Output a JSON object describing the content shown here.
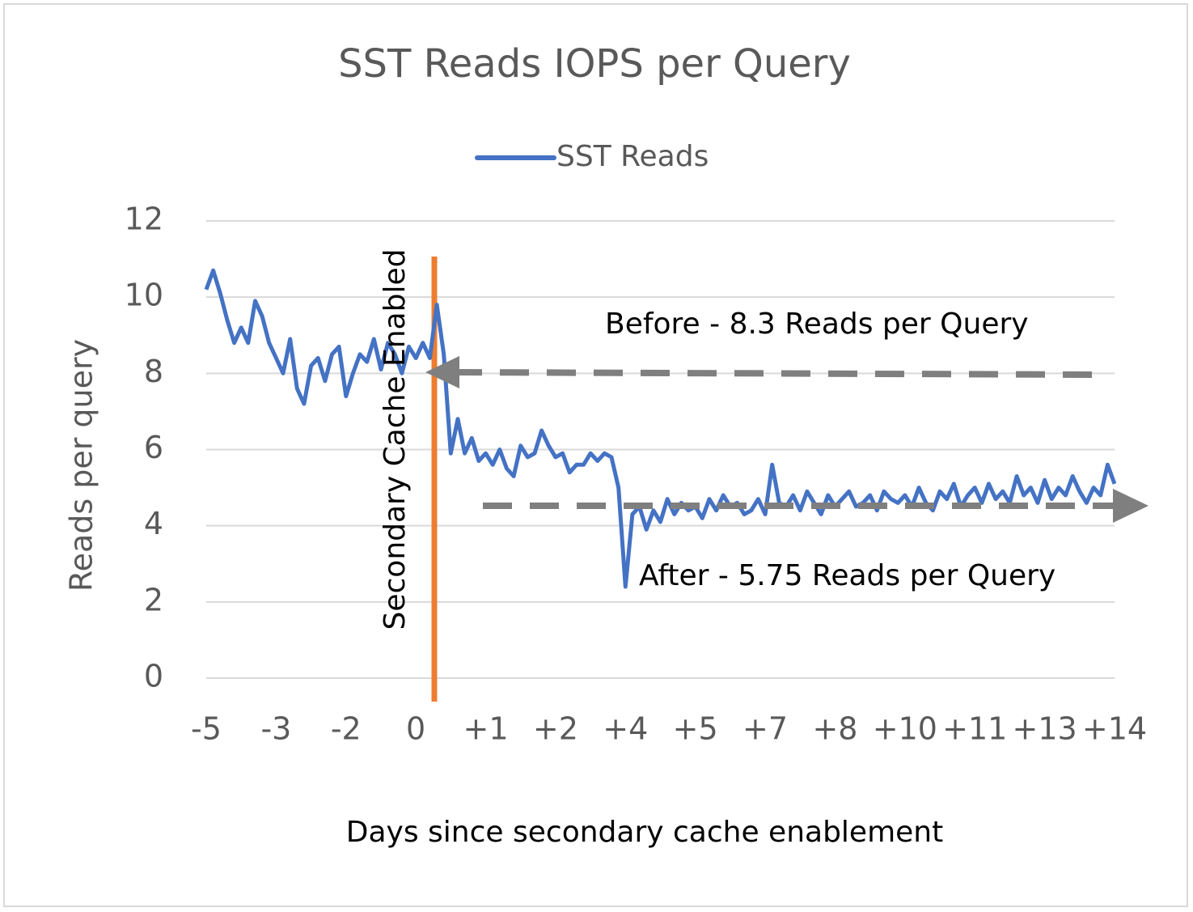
{
  "chart_data": {
    "type": "line",
    "title": "SST Reads IOPS per Query",
    "x_label": "Days since secondary cache enablement",
    "y_label": "Reads per query",
    "annotations": [
      "Before - 8.3 Reads per Query",
      "After - 5.75 Reads per Query",
      "Secondary Cache Enabled"
    ],
    "categories": [
      "-5",
      null,
      null,
      null,
      null,
      null,
      null,
      null,
      null,
      null,
      "-3",
      null,
      null,
      null,
      null,
      null,
      null,
      null,
      null,
      null,
      "-2",
      null,
      null,
      null,
      null,
      null,
      null,
      null,
      null,
      null,
      "0",
      null,
      null,
      null,
      null,
      null,
      null,
      null,
      null,
      null,
      "+1",
      null,
      null,
      null,
      null,
      null,
      null,
      null,
      null,
      null,
      "+2",
      null,
      null,
      null,
      null,
      null,
      null,
      null,
      null,
      null,
      "+4",
      null,
      null,
      null,
      null,
      null,
      null,
      null,
      null,
      null,
      "+5",
      null,
      null,
      null,
      null,
      null,
      null,
      null,
      null,
      null,
      "+7",
      null,
      null,
      null,
      null,
      null,
      null,
      null,
      null,
      null,
      "+8",
      null,
      null,
      null,
      null,
      null,
      null,
      null,
      null,
      null,
      "+10",
      null,
      null,
      null,
      null,
      null,
      null,
      null,
      null,
      null,
      "+11",
      null,
      null,
      null,
      null,
      null,
      null,
      null,
      null,
      null,
      "+13",
      null,
      null,
      null,
      null,
      null,
      null,
      null,
      null,
      null,
      "+14"
    ],
    "series": [
      {
        "name": "SST Reads",
        "color": "#4472c4",
        "values": [
          10.2,
          10.7,
          10.1,
          9.4,
          8.8,
          9.2,
          8.8,
          9.9,
          9.5,
          8.8,
          8.4,
          8.0,
          8.9,
          7.6,
          7.2,
          8.2,
          8.4,
          7.8,
          8.5,
          8.7,
          7.4,
          8.0,
          8.5,
          8.3,
          8.9,
          8.1,
          8.8,
          8.5,
          8.0,
          8.7,
          8.4,
          8.8,
          8.4,
          9.8,
          8.5,
          5.9,
          6.8,
          5.9,
          6.3,
          5.7,
          5.9,
          5.6,
          6.0,
          5.5,
          5.3,
          6.1,
          5.8,
          5.9,
          6.5,
          6.1,
          5.8,
          5.9,
          5.4,
          5.6,
          5.6,
          5.9,
          5.7,
          5.9,
          5.8,
          5.0,
          2.4,
          4.3,
          4.5,
          3.9,
          4.4,
          4.1,
          4.7,
          4.3,
          4.6,
          4.4,
          4.5,
          4.2,
          4.7,
          4.4,
          4.8,
          4.5,
          4.6,
          4.3,
          4.4,
          4.7,
          4.3,
          5.6,
          4.6,
          4.5,
          4.8,
          4.4,
          4.9,
          4.6,
          4.3,
          4.8,
          4.5,
          4.7,
          4.9,
          4.5,
          4.6,
          4.8,
          4.4,
          4.9,
          4.7,
          4.6,
          4.8,
          4.5,
          5.0,
          4.6,
          4.4,
          4.9,
          4.7,
          5.1,
          4.5,
          4.8,
          5.0,
          4.6,
          5.1,
          4.7,
          4.9,
          4.6,
          5.3,
          4.8,
          5.0,
          4.6,
          5.2,
          4.7,
          5.0,
          4.8,
          5.3,
          4.9,
          4.6,
          5.0,
          4.8,
          5.6,
          5.1
        ]
      }
    ],
    "ylim": [
      0,
      12
    ],
    "yticks": [
      0,
      2,
      4,
      6,
      8,
      10,
      12
    ],
    "grid": true,
    "legend": "top"
  }
}
